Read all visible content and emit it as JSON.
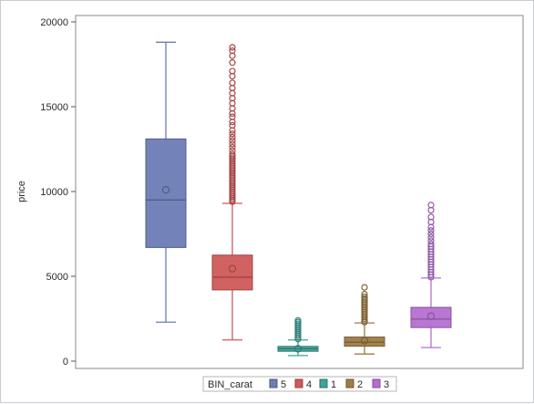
{
  "chart_data": {
    "type": "box",
    "ylabel": "price",
    "xlabel": "",
    "ylim": [
      0,
      20000
    ],
    "y_ticks": [
      0,
      5000,
      10000,
      15000,
      20000
    ],
    "grid": false,
    "legend": {
      "title": "BIN_carat",
      "position": "bottom-center",
      "entries": [
        "5",
        "4",
        "1",
        "2",
        "3"
      ]
    },
    "series": [
      {
        "name": "5",
        "color": "#6b7cb6",
        "whisker_low": 2300,
        "q1": 6700,
        "median": 9500,
        "q3": 13100,
        "whisker_high": 18800,
        "mean": 10100,
        "outliers": []
      },
      {
        "name": "4",
        "color": "#d05a5a",
        "whisker_low": 1250,
        "q1": 4200,
        "median": 4950,
        "q3": 6250,
        "whisker_high": 9300,
        "mean": 5450,
        "outliers": [
          9400,
          9500,
          9600,
          9700,
          9800,
          9900,
          10000,
          10100,
          10200,
          10300,
          10400,
          10500,
          10600,
          10700,
          10800,
          10900,
          11000,
          11100,
          11200,
          11300,
          11400,
          11500,
          11600,
          11700,
          11800,
          11900,
          12000,
          12100,
          12200,
          12400,
          12600,
          12800,
          13000,
          13200,
          13400,
          13600,
          13900,
          14100,
          14400,
          14600,
          14900,
          15200,
          15500,
          15800,
          16100,
          16400,
          16800,
          17100,
          17600,
          18000,
          18300,
          18500
        ]
      },
      {
        "name": "1",
        "color": "#3fa39a",
        "whisker_low": 330,
        "q1": 580,
        "median": 730,
        "q3": 870,
        "whisker_high": 1250,
        "mean": 730,
        "outliers": [
          1300,
          1400,
          1500,
          1600,
          1700,
          1800,
          1900,
          2000,
          2100,
          2200,
          2300,
          2400
        ]
      },
      {
        "name": "2",
        "color": "#9e7c45",
        "whisker_low": 420,
        "q1": 880,
        "median": 1120,
        "q3": 1420,
        "whisker_high": 2250,
        "mean": 1200,
        "outliers": [
          2300,
          2400,
          2500,
          2600,
          2700,
          2800,
          2900,
          3000,
          3100,
          3200,
          3300,
          3400,
          3500,
          3600,
          3700,
          3800,
          3950,
          4350
        ]
      },
      {
        "name": "3",
        "color": "#b56fd0",
        "whisker_low": 800,
        "q1": 1980,
        "median": 2480,
        "q3": 3170,
        "whisker_high": 4900,
        "mean": 2650,
        "outliers": [
          4950,
          5100,
          5250,
          5400,
          5550,
          5700,
          5850,
          6000,
          6150,
          6300,
          6450,
          6600,
          6750,
          6900,
          7100,
          7300,
          7500,
          7700,
          7900,
          8200,
          8500,
          8900,
          9200
        ]
      }
    ]
  }
}
